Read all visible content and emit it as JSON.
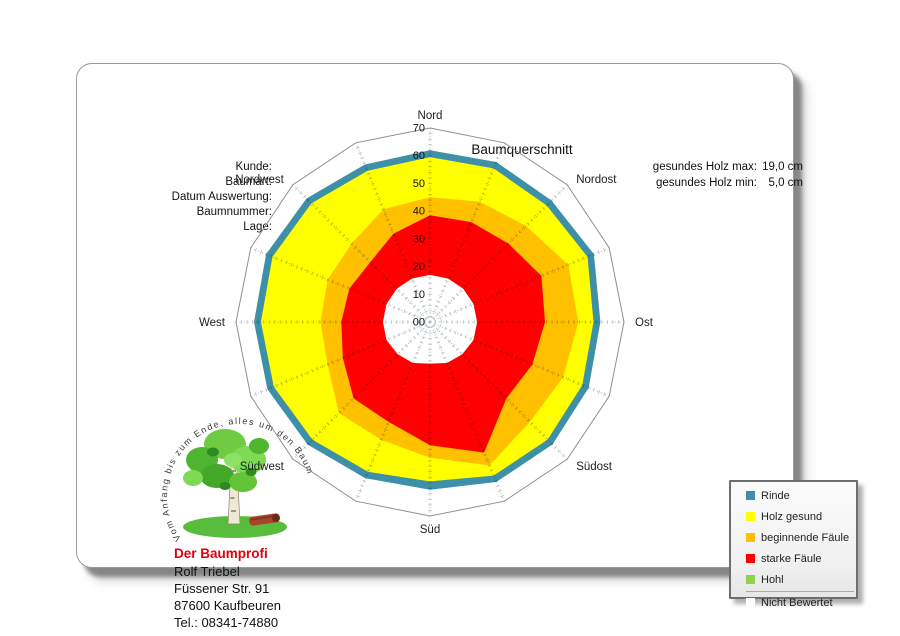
{
  "title": "Baumquerschnitt",
  "form": {
    "rows": [
      {
        "label": "Kunde:"
      },
      {
        "label": "Baumart:"
      },
      {
        "label": "Datum Auswertung:"
      },
      {
        "label": "Baumnummer:"
      },
      {
        "label": "Lage:"
      }
    ]
  },
  "stats": {
    "max_label": "gesundes Holz max:",
    "max_value": "19,0 cm",
    "min_label": "gesundes Holz min:",
    "min_value": "5,0 cm"
  },
  "chart_data": {
    "type": "radar",
    "title": "Baumquerschnitt",
    "units": "cm",
    "spokes": 16,
    "direction_labels": [
      "Nord",
      "Nordost",
      "Ost",
      "Südost",
      "Süd",
      "Südwest",
      "West",
      "Nordwest"
    ],
    "radial_ticks": [
      "00",
      "10",
      "20",
      "30",
      "40",
      "50",
      "60",
      "70"
    ],
    "r_max": 70,
    "gesundes_holz_max_cm": 19.0,
    "gesundes_holz_min_cm": 5.0,
    "series": [
      {
        "name": "Rinde",
        "color": "#3E90A8",
        "outer_radius": [
          62,
          62.5,
          62,
          64,
          61.5,
          62,
          62.5,
          62.5,
          60.5,
          61,
          62.5,
          63.5,
          63.5,
          64,
          63,
          61.5
        ]
      },
      {
        "name": "Holz gesund",
        "color": "#FFFF00",
        "outer_radius": [
          59.5,
          60,
          59.5,
          61.5,
          59,
          59.5,
          60,
          60,
          57.5,
          58.5,
          60,
          61,
          61,
          61.5,
          60.5,
          59
        ]
      },
      {
        "name": "beginnende Fäule",
        "color": "#FFC000",
        "outer_radius": [
          45,
          47,
          49,
          54,
          53.5,
          52,
          51,
          56,
          49,
          46,
          46.5,
          40,
          39.5,
          40,
          40,
          44
        ]
      },
      {
        "name": "starke Fäule",
        "color": "#FF0000",
        "outer_radius": [
          38.5,
          39,
          40,
          43.5,
          41.5,
          40,
          39,
          51,
          44.5,
          39,
          39,
          34,
          32,
          31.5,
          30.5,
          34.5
        ]
      },
      {
        "name": "Nicht Bewertet",
        "color": "#FFFFFF",
        "outer_radius": [
          17,
          17,
          17,
          17,
          17,
          17,
          16.5,
          16,
          15,
          16,
          16.5,
          17,
          17,
          17,
          17,
          17
        ]
      }
    ]
  },
  "legend": {
    "items": [
      {
        "label": "Rinde",
        "color": "#3E90A8"
      },
      {
        "label": "Holz gesund",
        "color": "#FFFF00"
      },
      {
        "label": "beginnende Fäule",
        "color": "#FFC000"
      },
      {
        "label": "starke Fäule",
        "color": "#FF0000"
      },
      {
        "label": "Hohl",
        "color": "#92D050"
      },
      {
        "label": "Nicht Bewertet",
        "color": "#FFFFFF"
      }
    ]
  },
  "logo": {
    "arc_text": "Vom Anfang bis zum Ende, alles um den Baum"
  },
  "contact": {
    "company": "Der Baumprofi",
    "company_color": "#E2000F",
    "name": "Rolf Triebel",
    "street": "Füssener Str. 91",
    "city": "87600 Kaufbeuren",
    "phone": "Tel.: 08341-74880"
  }
}
